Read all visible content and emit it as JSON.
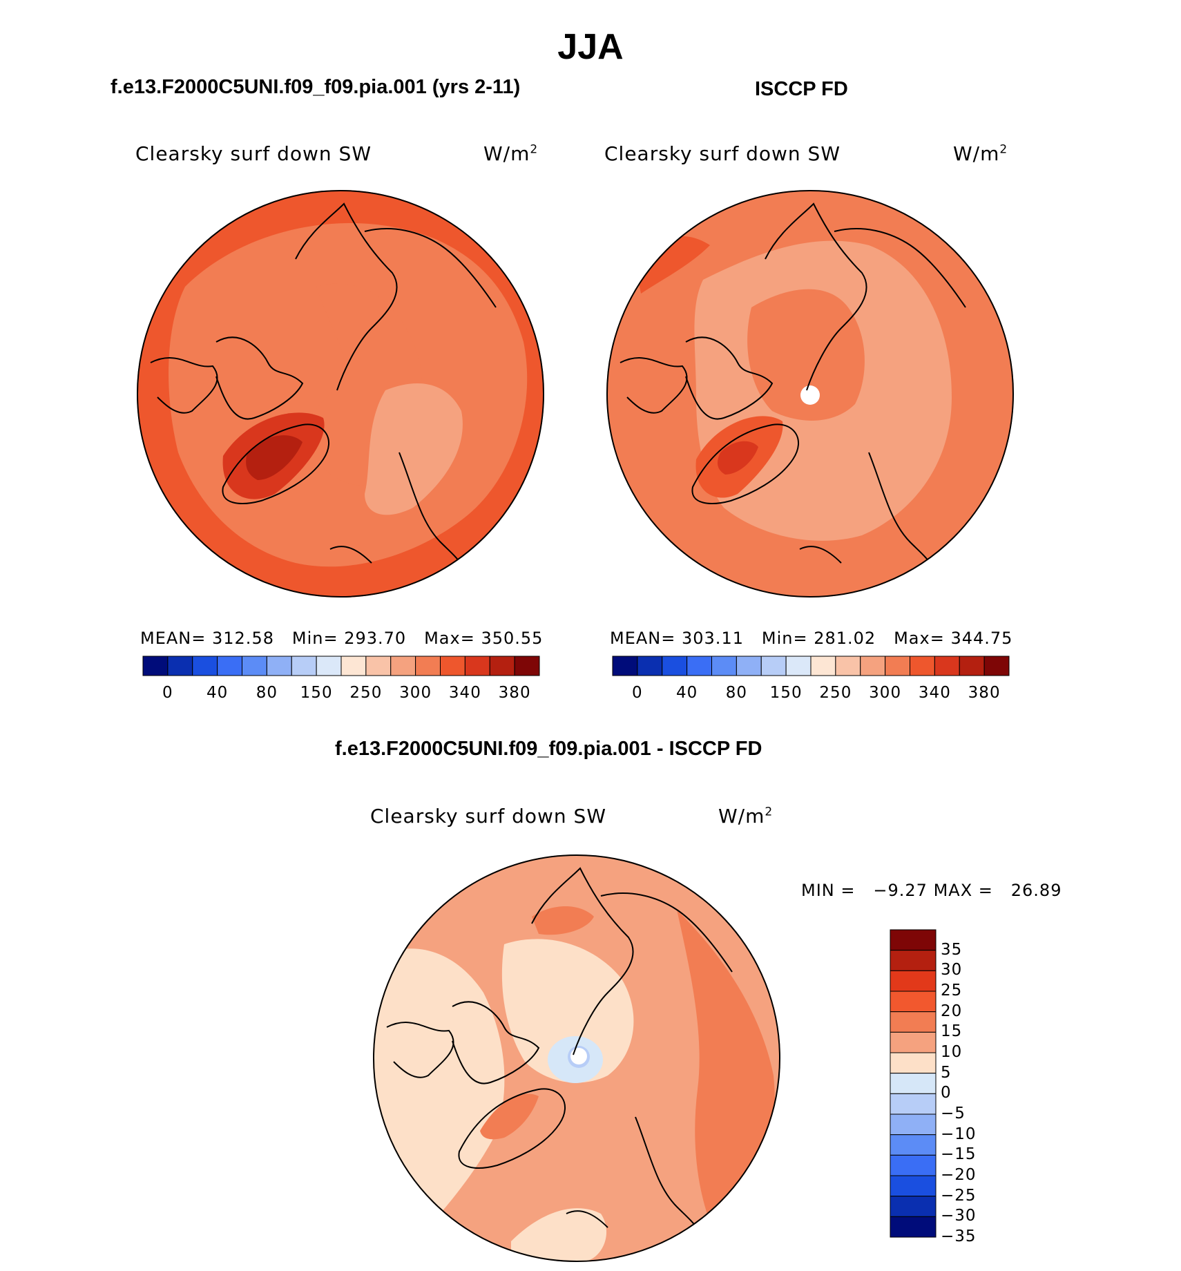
{
  "title": "JJA",
  "panels": [
    {
      "title": "f.e13.F2000C5UNI.f09_f09.pia.001 (yrs 2-11)",
      "variable": "Clearsky surf down SW",
      "units": "W/m",
      "units_sup": "2",
      "stats": {
        "mean_label": "MEAN=",
        "mean": "312.58",
        "min_label": "Min=",
        "min": "293.70",
        "max_label": "Max=",
        "max": "350.55"
      }
    },
    {
      "title": "ISCCP FD",
      "variable": "Clearsky surf down SW",
      "units": "W/m",
      "units_sup": "2",
      "stats": {
        "mean_label": "MEAN=",
        "mean": "303.11",
        "min_label": "Min=",
        "min": "281.02",
        "max_label": "Max=",
        "max": "344.75"
      }
    },
    {
      "title": "f.e13.F2000C5UNI.f09_f09.pia.001 - ISCCP FD",
      "variable": "Clearsky surf down SW",
      "units": "W/m",
      "units_sup": "2",
      "stats": {
        "min_label": "MIN =",
        "min": "−9.27",
        "max_label": "MAX =",
        "max": "26.89"
      }
    }
  ],
  "colorbar_abs": {
    "colors": [
      "#000c7a",
      "#0a2fb0",
      "#1a4fe0",
      "#3a6ef5",
      "#5c8cf6",
      "#8fb0f6",
      "#b7cdf7",
      "#dbe8f9",
      "#fde6d4",
      "#f9c3a8",
      "#f5a27f",
      "#f27d53",
      "#ee572d",
      "#d9371d",
      "#b42010",
      "#7e0606"
    ],
    "labels": [
      "0",
      "40",
      "80",
      "150",
      "250",
      "300",
      "340",
      "380"
    ]
  },
  "colorbar_diff": {
    "colors": [
      "#7e0606",
      "#b42010",
      "#e2391a",
      "#f2582e",
      "#f27d53",
      "#f5a27f",
      "#fde0c8",
      "#d6e7f8",
      "#b7cdf7",
      "#8fb0f6",
      "#5c8cf6",
      "#3a6ef5",
      "#1a4fe0",
      "#0a2fb0",
      "#000c7a"
    ],
    "labels": [
      "35",
      "30",
      "25",
      "20",
      "15",
      "10",
      "5",
      "0",
      "−5",
      "−10",
      "−15",
      "−20",
      "−25",
      "−30",
      "−35"
    ]
  },
  "chart_data": [
    {
      "type": "heatmap",
      "projection": "north polar stereographic",
      "title": "f.e13.F2000C5UNI.f09_f09.pia.001 (yrs 2-11)",
      "variable": "Clearsky surf down SW",
      "units": "W/m2",
      "mean": 312.58,
      "min": 293.7,
      "max": 350.55,
      "levels": [
        0,
        40,
        80,
        150,
        250,
        300,
        340,
        380
      ]
    },
    {
      "type": "heatmap",
      "projection": "north polar stereographic",
      "title": "ISCCP FD",
      "variable": "Clearsky surf down SW",
      "units": "W/m2",
      "mean": 303.11,
      "min": 281.02,
      "max": 344.75,
      "levels": [
        0,
        40,
        80,
        150,
        250,
        300,
        340,
        380
      ]
    },
    {
      "type": "heatmap",
      "projection": "north polar stereographic",
      "title": "f.e13.F2000C5UNI.f09_f09.pia.001 - ISCCP FD",
      "variable": "Clearsky surf down SW",
      "units": "W/m2",
      "min": -9.27,
      "max": 26.89,
      "levels": [
        -35,
        -30,
        -25,
        -20,
        -15,
        -10,
        -5,
        0,
        5,
        10,
        15,
        20,
        25,
        30,
        35
      ]
    }
  ]
}
